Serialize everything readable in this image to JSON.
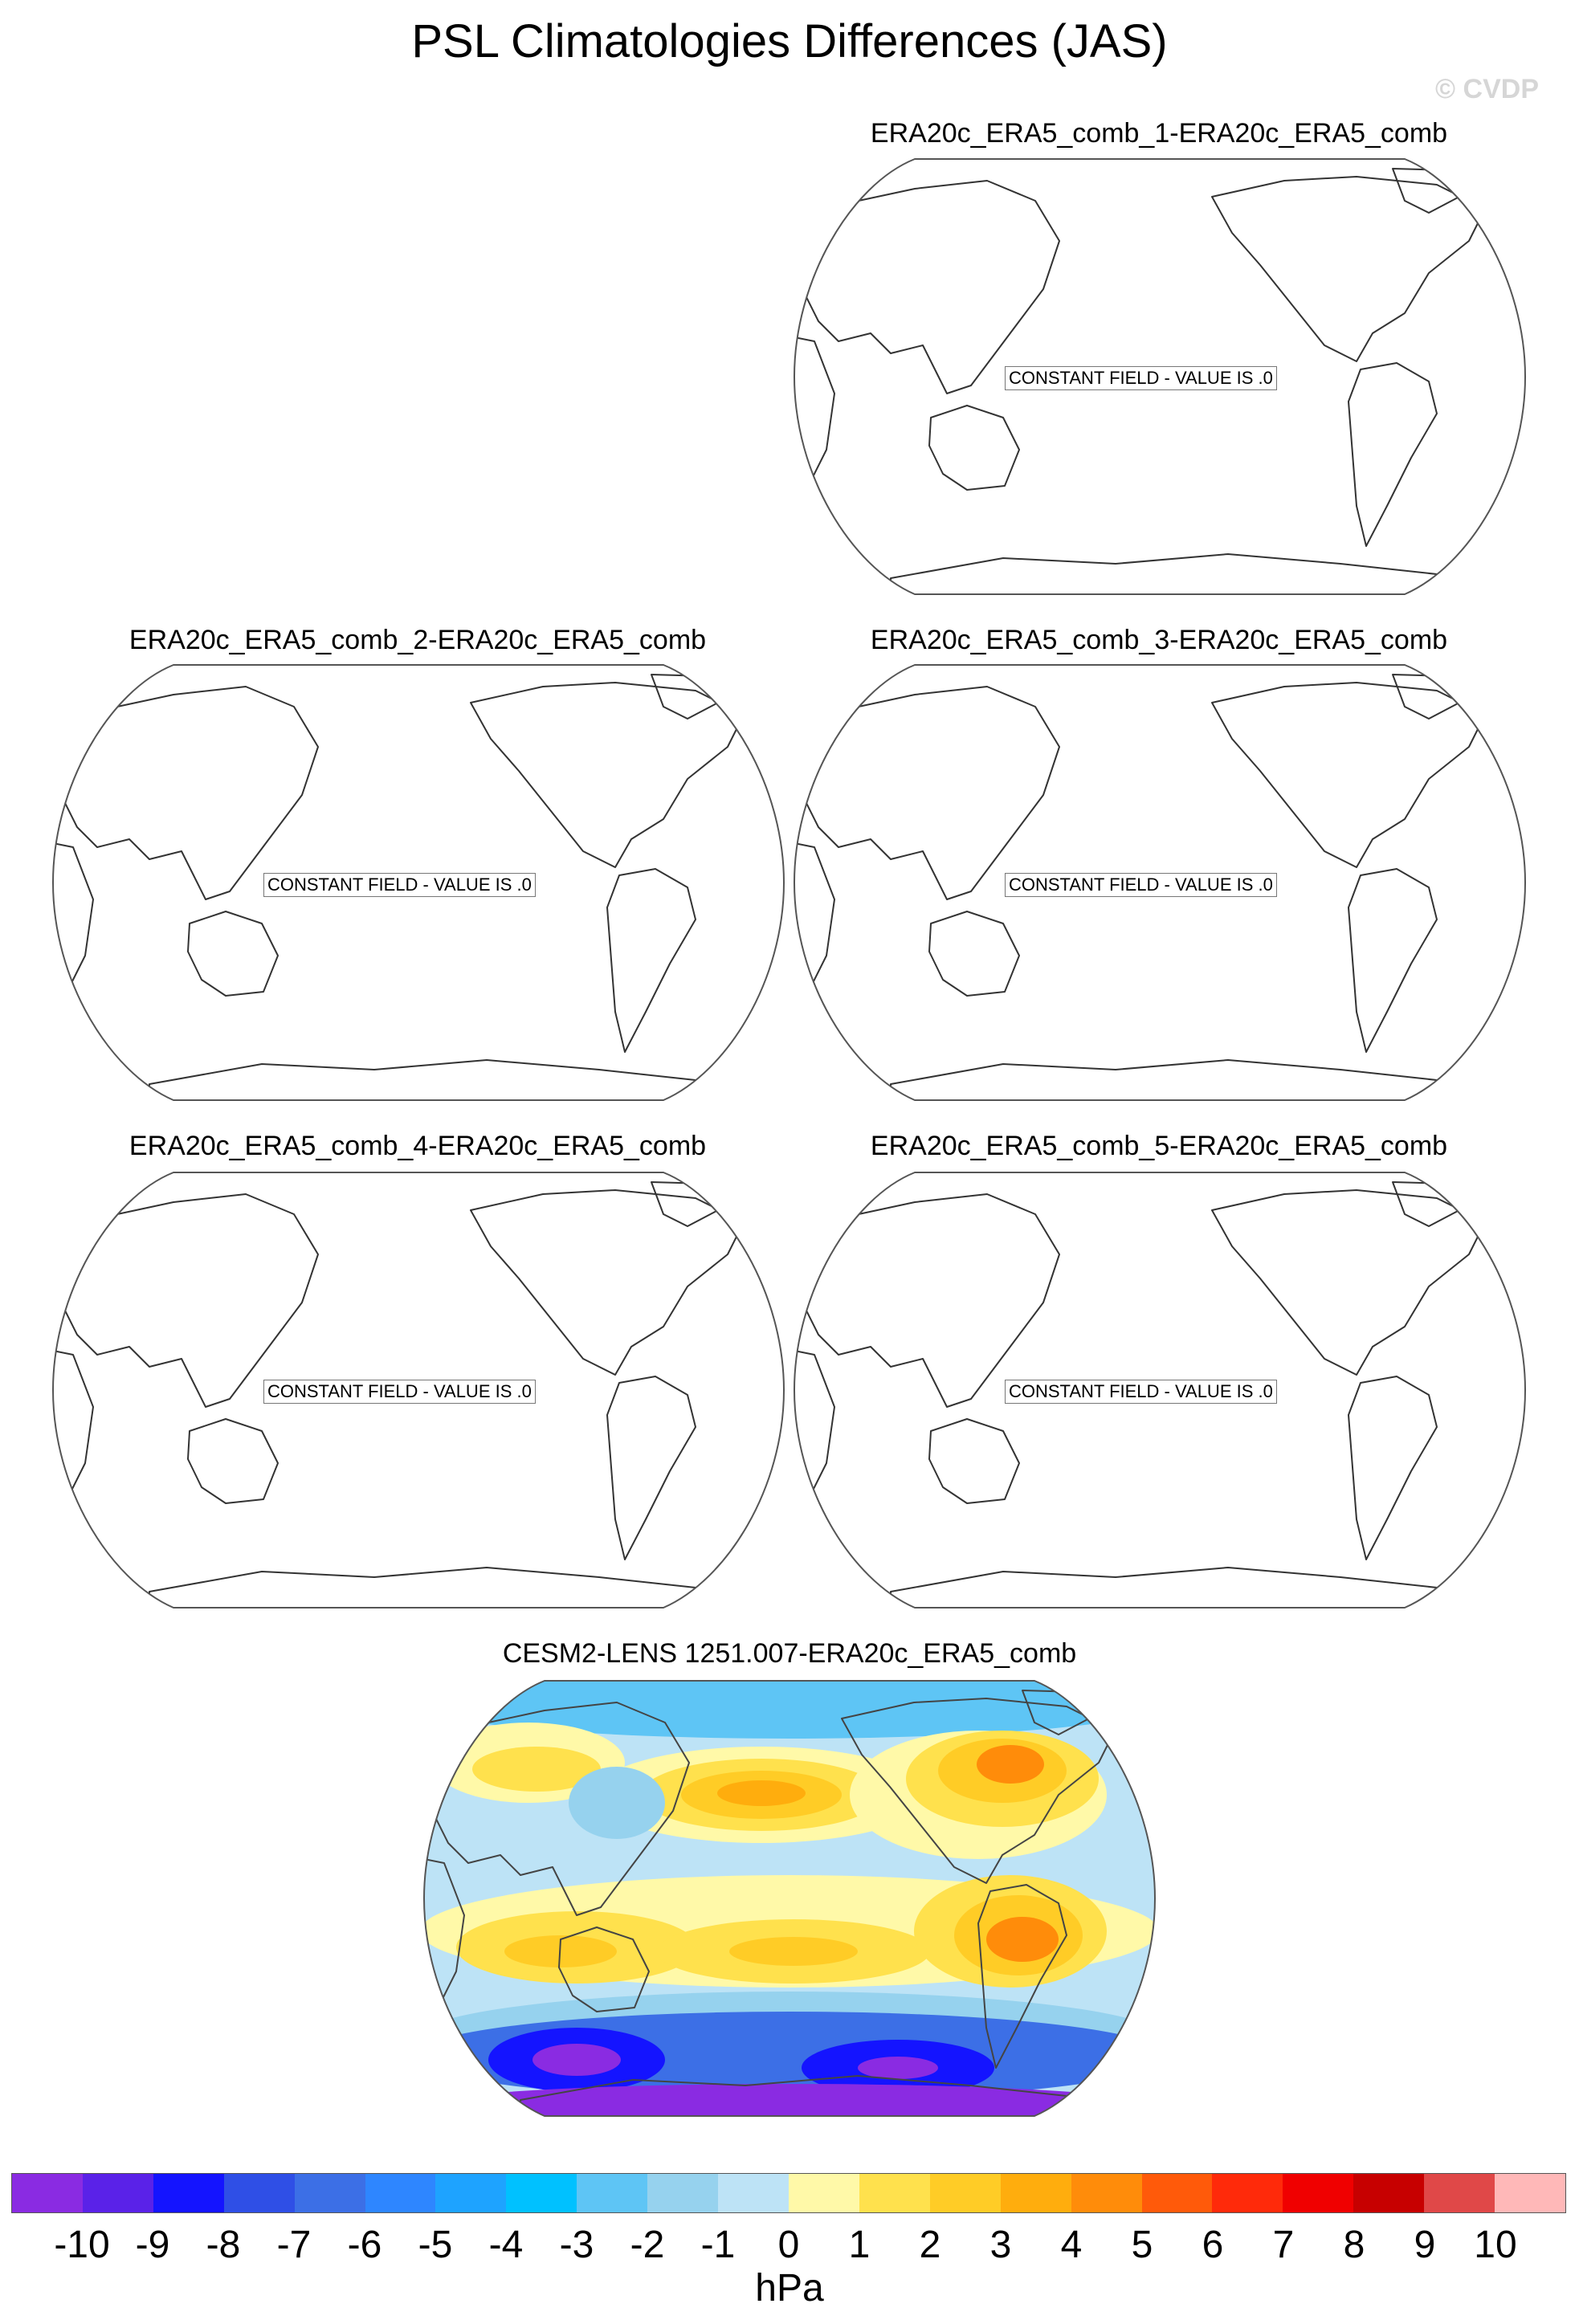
{
  "title": "PSL Climatologies Differences (JAS)",
  "copyright": "© CVDP",
  "constant_label": "CONSTANT FIELD - VALUE IS .0",
  "panels": [
    {
      "title": "ERA20c_ERA5_comb_1-ERA20c_ERA5_comb",
      "field": "constant"
    },
    {
      "title": "ERA20c_ERA5_comb_2-ERA20c_ERA5_comb",
      "field": "constant"
    },
    {
      "title": "ERA20c_ERA5_comb_3-ERA20c_ERA5_comb",
      "field": "constant"
    },
    {
      "title": "ERA20c_ERA5_comb_4-ERA20c_ERA5_comb",
      "field": "constant"
    },
    {
      "title": "ERA20c_ERA5_comb_5-ERA20c_ERA5_comb",
      "field": "constant"
    },
    {
      "title": "CESM2-LENS 1251.007-ERA20c_ERA5_comb",
      "field": "filled"
    }
  ],
  "colorbar": {
    "units": "hPa",
    "ticks": [
      "-10",
      "-9",
      "-8",
      "-7",
      "-6",
      "-5",
      "-4",
      "-3",
      "-2",
      "-1",
      "0",
      "1",
      "2",
      "3",
      "4",
      "5",
      "6",
      "7",
      "8",
      "9",
      "10"
    ],
    "colors": [
      "#8a2be2",
      "#5a22e8",
      "#1414ff",
      "#2f4fe6",
      "#3c6fe6",
      "#2e86ff",
      "#1ea3ff",
      "#00c1ff",
      "#5ec5f5",
      "#96d2ee",
      "#bde3f6",
      "#fff9a8",
      "#ffe14d",
      "#ffcc26",
      "#ffad0d",
      "#ff8c0a",
      "#ff5a0a",
      "#ff2a0a",
      "#f00000",
      "#c70000",
      "#e04848",
      "#ffb8b8"
    ]
  }
}
